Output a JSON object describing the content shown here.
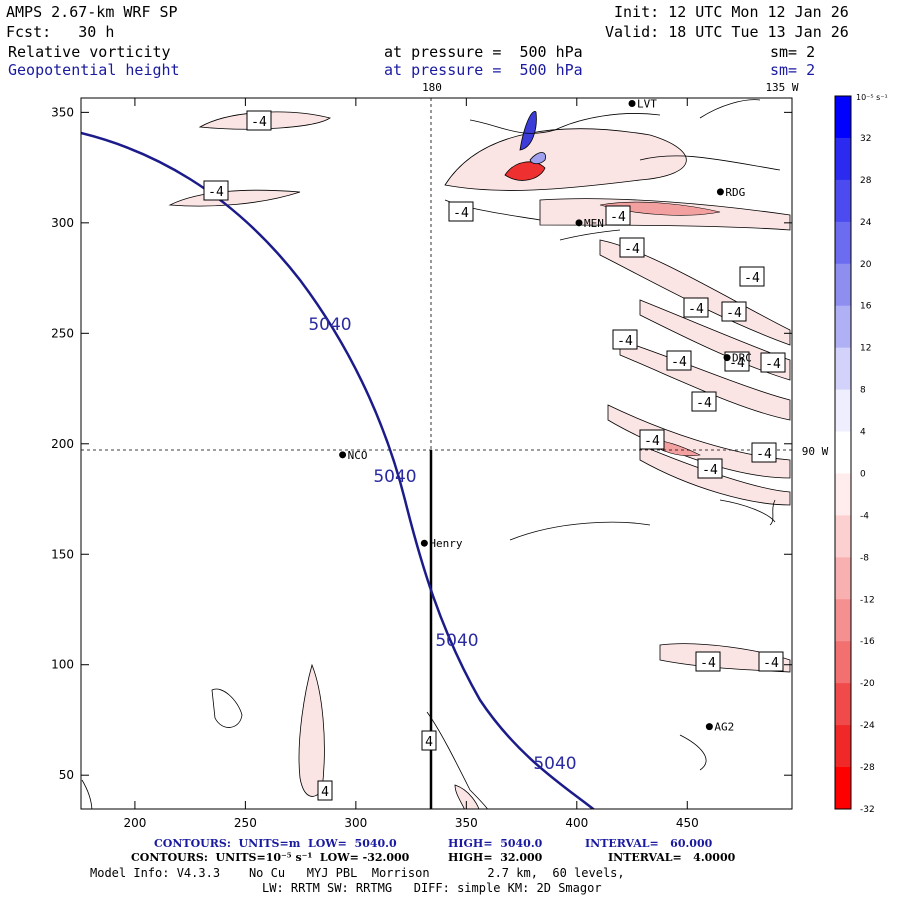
{
  "header": {
    "model": "AMPS 2.67-km WRF SP",
    "init": "Init: 12 UTC Mon 12 Jan 26",
    "fcst": "Fcst:   30 h",
    "valid": "Valid: 18 UTC Tue 13 Jan 26",
    "field1": "Relative vorticity",
    "field1_level": "at pressure =  500 hPa",
    "field1_sm": "sm= 2",
    "field2": "Geopotential height",
    "field2_level": "at pressure =  500 hPa",
    "field2_sm": "sm= 2"
  },
  "map": {
    "lon_180": "180",
    "lon_135w": "135 W",
    "lat_90w": "90 W",
    "x_ticks": [
      "200",
      "250",
      "300",
      "350",
      "400",
      "450"
    ],
    "y_ticks": [
      "350",
      "300",
      "250",
      "200",
      "150",
      "100",
      "50"
    ],
    "stations": [
      {
        "label": "LVT",
        "x": 425,
        "y": 354
      },
      {
        "label": "RDG",
        "x": 465,
        "y": 314
      },
      {
        "label": "MEN",
        "x": 401,
        "y": 300
      },
      {
        "label": "DRC",
        "x": 468,
        "y": 239
      },
      {
        "label": "NCO",
        "x": 294,
        "y": 195
      },
      {
        "label": "Henry",
        "x": 331,
        "y": 155
      },
      {
        "label": "AG2",
        "x": 460,
        "y": 72
      }
    ],
    "height_labels": [
      "5040",
      "5040",
      "5040",
      "5040"
    ],
    "vort_labels": [
      "-4",
      "-4",
      "-4",
      "-4",
      "-4",
      "-4",
      "-4",
      "-4",
      "-4",
      "-4",
      "-4",
      "-4",
      "-4",
      "-4",
      "-4",
      "-4",
      "-4",
      "-4",
      "4",
      "4"
    ]
  },
  "colorbar": {
    "unit": "10⁻⁵ s⁻¹",
    "ticks": [
      "32",
      "28",
      "24",
      "20",
      "16",
      "12",
      "8",
      "4",
      "0",
      "-4",
      "-8",
      "-12",
      "-16",
      "-20",
      "-24",
      "-28",
      "-32"
    ],
    "colors": [
      "#0000ff",
      "#2a2af0",
      "#4b4bf0",
      "#6c6cf0",
      "#8e8ef0",
      "#b0b0f5",
      "#d2d2fa",
      "#eeeeff",
      "#ffffff",
      "#ffecec",
      "#fcd0d0",
      "#f8b0b0",
      "#f59090",
      "#f27070",
      "#f04a4a",
      "#f02828",
      "#ff0000"
    ]
  },
  "footer": {
    "line1_a": "CONTOURS:  UNITS=m  LOW=  5040.0",
    "line1_b": "HIGH=  5040.0",
    "line1_c": "INTERVAL=   60.000",
    "line2_a": "CONTOURS:  UNITS=10⁻⁵ s⁻¹  LOW= -32.000",
    "line2_b": "HIGH=  32.000",
    "line2_c": "INTERVAL=   4.0000",
    "line3": "Model Info: V4.3.3    No Cu   MYJ PBL  Morrison        2.7 km,  60 levels,",
    "line4": "LW: RRTM SW: RRTMG   DIFF: simple KM: 2D Smagor"
  }
}
